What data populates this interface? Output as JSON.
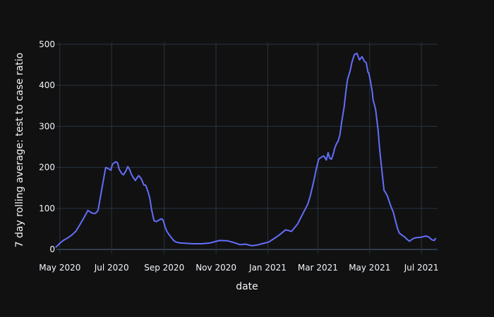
{
  "chart_data": {
    "type": "line",
    "xlabel": "date",
    "ylabel": "7 day rolling average: test to case ratio",
    "xlim": [
      "2020-04-27",
      "2021-07-20"
    ],
    "ylim": [
      -10,
      505
    ],
    "x_ticks": [
      {
        "date": "2020-05-01",
        "label": "May 2020"
      },
      {
        "date": "2020-07-01",
        "label": "Jul 2020"
      },
      {
        "date": "2020-09-01",
        "label": "Sep 2020"
      },
      {
        "date": "2020-11-01",
        "label": "Nov 2020"
      },
      {
        "date": "2021-01-01",
        "label": "Jan 2021"
      },
      {
        "date": "2021-03-01",
        "label": "Mar 2021"
      },
      {
        "date": "2021-05-01",
        "label": "May 2021"
      },
      {
        "date": "2021-07-01",
        "label": "Jul 2021"
      }
    ],
    "y_ticks": [
      0,
      100,
      200,
      300,
      400,
      500
    ],
    "grid": true,
    "series_color": "#636efa",
    "series": [
      {
        "x": [
          "2020-04-26",
          "2020-05-01",
          "2020-05-05",
          "2020-05-10",
          "2020-05-15",
          "2020-05-20",
          "2020-05-25",
          "2020-05-30",
          "2020-06-03",
          "2020-06-07",
          "2020-06-09",
          "2020-06-12",
          "2020-06-15",
          "2020-06-18",
          "2020-06-21",
          "2020-06-24",
          "2020-06-27",
          "2020-06-30",
          "2020-07-02",
          "2020-07-06",
          "2020-07-08",
          "2020-07-10",
          "2020-07-13",
          "2020-07-15",
          "2020-07-18",
          "2020-07-20",
          "2020-07-22",
          "2020-07-24",
          "2020-07-26",
          "2020-07-29",
          "2020-07-31",
          "2020-08-02",
          "2020-08-05",
          "2020-08-08",
          "2020-08-10",
          "2020-08-13",
          "2020-08-15",
          "2020-08-17",
          "2020-08-20",
          "2020-08-23",
          "2020-08-26",
          "2020-08-29",
          "2020-08-31",
          "2020-09-02",
          "2020-09-04",
          "2020-09-06",
          "2020-09-09",
          "2020-09-12",
          "2020-09-15",
          "2020-09-20",
          "2020-09-27",
          "2020-10-05",
          "2020-10-15",
          "2020-10-25",
          "2020-11-05",
          "2020-11-15",
          "2020-11-22",
          "2020-11-29",
          "2020-12-06",
          "2020-12-13",
          "2020-12-20",
          "2020-12-25",
          "2020-12-29",
          "2021-01-02",
          "2021-01-08",
          "2021-01-15",
          "2021-01-22",
          "2021-01-29",
          "2021-02-05",
          "2021-02-12",
          "2021-02-17",
          "2021-02-20",
          "2021-02-24",
          "2021-02-27",
          "2021-03-02",
          "2021-03-05",
          "2021-03-08",
          "2021-03-11",
          "2021-03-13",
          "2021-03-15",
          "2021-03-17",
          "2021-03-19",
          "2021-03-21",
          "2021-03-23",
          "2021-03-25",
          "2021-03-27",
          "2021-03-29",
          "2021-04-01",
          "2021-04-03",
          "2021-04-05",
          "2021-04-08",
          "2021-04-10",
          "2021-04-13",
          "2021-04-16",
          "2021-04-19",
          "2021-04-22",
          "2021-04-25",
          "2021-04-27",
          "2021-04-29",
          "2021-04-30",
          "2021-05-01",
          "2021-05-02",
          "2021-05-04",
          "2021-05-05",
          "2021-05-08",
          "2021-05-11",
          "2021-05-13",
          "2021-05-16",
          "2021-05-18",
          "2021-05-20",
          "2021-05-22",
          "2021-05-24",
          "2021-05-26",
          "2021-05-29",
          "2021-06-01",
          "2021-06-03",
          "2021-06-05",
          "2021-06-08",
          "2021-06-11",
          "2021-06-14",
          "2021-06-17",
          "2021-06-20",
          "2021-06-23",
          "2021-06-26",
          "2021-07-01",
          "2021-07-06",
          "2021-07-10",
          "2021-07-13",
          "2021-07-16",
          "2021-07-18"
        ],
        "values": [
          5,
          15,
          22,
          28,
          35,
          45,
          62,
          80,
          95,
          90,
          88,
          88,
          95,
          130,
          165,
          200,
          197,
          193,
          208,
          214,
          211,
          195,
          185,
          182,
          192,
          202,
          196,
          185,
          177,
          168,
          175,
          180,
          172,
          157,
          157,
          140,
          125,
          98,
          70,
          68,
          72,
          75,
          70,
          55,
          45,
          38,
          30,
          22,
          18,
          16,
          15,
          14,
          14,
          16,
          22,
          21,
          17,
          12,
          13,
          9,
          11,
          14,
          16,
          18,
          26,
          36,
          48,
          44,
          62,
          90,
          110,
          130,
          165,
          195,
          220,
          225,
          228,
          218,
          236,
          222,
          220,
          232,
          248,
          258,
          265,
          280,
          310,
          348,
          385,
          415,
          435,
          455,
          475,
          478,
          462,
          470,
          458,
          455,
          432,
          430,
          420,
          410,
          385,
          365,
          342,
          290,
          240,
          182,
          144,
          138,
          130,
          118,
          105,
          90,
          65,
          50,
          40,
          35,
          31,
          25,
          20,
          25,
          28,
          29,
          30,
          33,
          30,
          24,
          22,
          28
        ]
      }
    ]
  }
}
